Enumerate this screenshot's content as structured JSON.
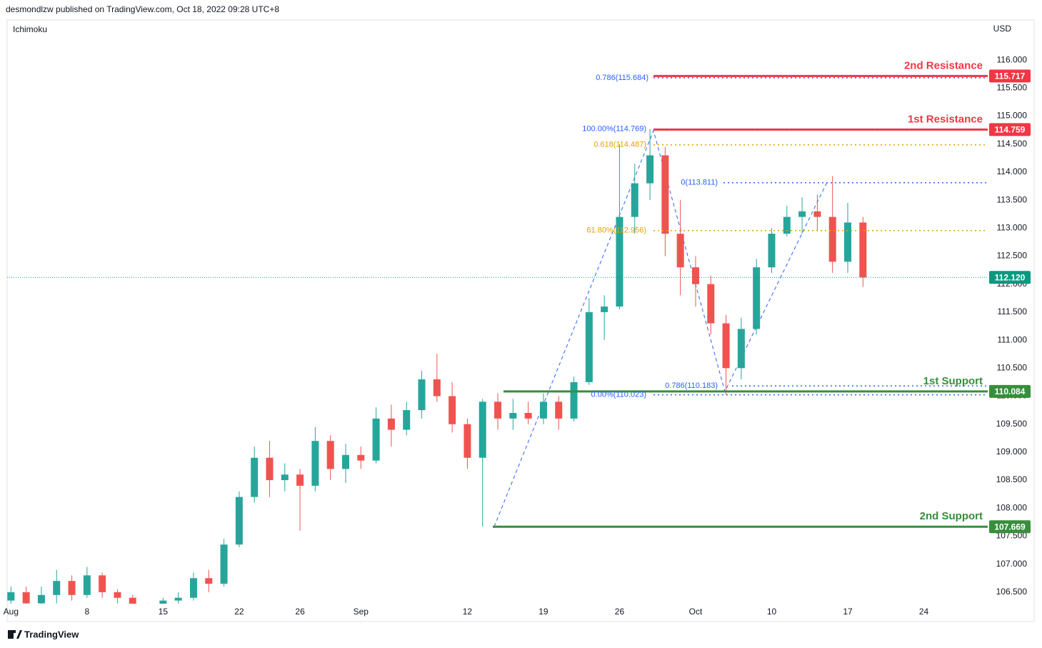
{
  "header": {
    "publisher": "desmondlzw published on TradingView.com, Oct 18, 2022 09:28 UTC+8",
    "indicator": "Ichimoku",
    "currency": "USD",
    "brand": "TradingView"
  },
  "chart_data": {
    "type": "candlestick",
    "xlim": [
      -0.25,
      64.2
    ],
    "ylim": [
      106.294,
      116.716
    ],
    "xticks": [
      {
        "value": 0,
        "label": "Aug"
      },
      {
        "value": 5,
        "label": "8"
      },
      {
        "value": 10,
        "label": "15"
      },
      {
        "value": 15,
        "label": "22"
      },
      {
        "value": 19,
        "label": "26"
      },
      {
        "value": 23,
        "label": "Sep"
      },
      {
        "value": 30,
        "label": "12"
      },
      {
        "value": 35,
        "label": "19"
      },
      {
        "value": 40,
        "label": "26"
      },
      {
        "value": 45,
        "label": "Oct"
      },
      {
        "value": 50,
        "label": "10"
      },
      {
        "value": 55,
        "label": "17"
      },
      {
        "value": 60,
        "label": "24"
      }
    ],
    "yticks": [
      {
        "value": 106.5,
        "label": "106.500"
      },
      {
        "value": 107,
        "label": "107.000"
      },
      {
        "value": 107.5,
        "label": "107.500"
      },
      {
        "value": 108,
        "label": "108.000"
      },
      {
        "value": 108.5,
        "label": "108.500"
      },
      {
        "value": 109,
        "label": "109.000"
      },
      {
        "value": 109.5,
        "label": "109.500"
      },
      {
        "value": 110,
        "label": "110.000"
      },
      {
        "value": 110.5,
        "label": "110.500"
      },
      {
        "value": 111,
        "label": "111.000"
      },
      {
        "value": 111.5,
        "label": "111.500"
      },
      {
        "value": 112,
        "label": "112.000"
      },
      {
        "value": 112.5,
        "label": "112.500"
      },
      {
        "value": 113,
        "label": "113.000"
      },
      {
        "value": 113.5,
        "label": "113.500"
      },
      {
        "value": 114,
        "label": "114.000"
      },
      {
        "value": 114.5,
        "label": "114.500"
      },
      {
        "value": 115,
        "label": "115.000"
      },
      {
        "value": 115.5,
        "label": "115.500"
      },
      {
        "value": 116,
        "label": "116.000"
      }
    ],
    "x": [
      0,
      1,
      2,
      3,
      4,
      5,
      6,
      7,
      8,
      9,
      10,
      11,
      12,
      13,
      14,
      15,
      16,
      17,
      18,
      19,
      20,
      21,
      22,
      23,
      24,
      25,
      26,
      27,
      28,
      29,
      30,
      31,
      32,
      33,
      34,
      35,
      36,
      37,
      38,
      39,
      40,
      41,
      42,
      43,
      44,
      45,
      46,
      47,
      48,
      49,
      50,
      51,
      52,
      53,
      54,
      55,
      56
    ],
    "open": [
      106.35,
      106.5,
      106.3,
      106.45,
      106.7,
      106.45,
      106.8,
      106.5,
      106.4,
      106.2,
      106.1,
      106.35,
      106.4,
      106.75,
      106.65,
      107.35,
      108.2,
      108.9,
      108.5,
      108.6,
      108.4,
      109.2,
      108.7,
      108.95,
      108.85,
      109.6,
      109.4,
      109.75,
      110.3,
      110.0,
      109.5,
      108.9,
      109.9,
      109.6,
      109.7,
      109.6,
      109.9,
      109.6,
      110.25,
      111.5,
      111.6,
      113.2,
      113.8,
      114.3,
      112.9,
      112.3,
      112.0,
      111.3,
      110.5,
      111.2,
      112.3,
      112.9,
      113.2,
      113.3,
      113.2,
      112.4,
      113.1
    ],
    "high": [
      106.6,
      106.6,
      106.6,
      106.9,
      106.8,
      106.95,
      106.85,
      106.55,
      106.45,
      106.3,
      106.4,
      106.5,
      106.85,
      106.9,
      107.45,
      108.3,
      109.1,
      109.2,
      108.8,
      108.7,
      109.45,
      109.3,
      109.15,
      109.1,
      109.8,
      109.85,
      109.9,
      110.45,
      110.76,
      110.25,
      109.6,
      109.95,
      110.05,
      109.95,
      109.9,
      110.05,
      110.0,
      110.35,
      111.75,
      111.8,
      114.5,
      114.15,
      114.769,
      114.45,
      113.5,
      112.5,
      112.15,
      111.45,
      111.4,
      112.45,
      113.0,
      113.4,
      113.55,
      113.6,
      113.93,
      113.45,
      113.2
    ],
    "low": [
      106.2,
      106.2,
      106.25,
      106.3,
      106.35,
      106.4,
      106.4,
      106.3,
      106.1,
      106.0,
      106.0,
      106.25,
      106.35,
      106.5,
      106.6,
      107.3,
      108.1,
      108.2,
      108.3,
      107.6,
      108.3,
      108.5,
      108.45,
      108.7,
      108.8,
      109.1,
      109.3,
      109.6,
      109.9,
      109.35,
      108.7,
      107.669,
      109.4,
      109.4,
      109.5,
      109.5,
      109.4,
      109.55,
      110.2,
      111.0,
      111.55,
      112.9,
      113.5,
      112.5,
      111.8,
      111.6,
      111.1,
      110.023,
      110.3,
      111.1,
      112.2,
      112.85,
      112.9,
      112.95,
      112.2,
      112.2,
      111.95
    ],
    "close": [
      106.5,
      106.3,
      106.45,
      106.7,
      106.45,
      106.8,
      106.5,
      106.4,
      106.2,
      106.1,
      106.35,
      106.4,
      106.75,
      106.65,
      107.35,
      108.2,
      108.9,
      108.5,
      108.6,
      108.4,
      109.2,
      108.7,
      108.95,
      108.85,
      109.6,
      109.4,
      109.75,
      110.3,
      110.0,
      109.5,
      108.9,
      109.9,
      109.6,
      109.7,
      109.6,
      109.9,
      109.6,
      110.25,
      111.5,
      111.6,
      113.2,
      113.8,
      114.3,
      112.9,
      112.3,
      112.0,
      111.3,
      110.5,
      111.2,
      112.3,
      112.9,
      113.2,
      113.3,
      113.2,
      112.4,
      113.1,
      112.12
    ],
    "up_color": "#26a69a",
    "down_color": "#ef5350",
    "levels": [
      {
        "name": "2nd Resistance",
        "value": 115.717,
        "label": "115.717",
        "color": "#f23645"
      },
      {
        "name": "1st Resistance",
        "value": 114.759,
        "label": "114.759",
        "color": "#f23645"
      },
      {
        "name": "1st Support",
        "value": 110.084,
        "label": "110.084",
        "color": "#388e3c"
      },
      {
        "name": "2nd Support",
        "value": 107.669,
        "label": "107.669",
        "color": "#388e3c"
      }
    ],
    "fibs": [
      {
        "label": "0.786(115.684)",
        "value": 115.684,
        "color": "#2962ff"
      },
      {
        "label": "100.00%(114.769)",
        "value": 114.769,
        "color": "#2962ff"
      },
      {
        "label": "0.618(114.487)",
        "value": 114.487,
        "color": "#e5a100"
      },
      {
        "label": "0(113.811)",
        "value": 113.811,
        "color": "#2962ff"
      },
      {
        "label": "61.80%(112.956)",
        "value": 112.956,
        "color": "#e5a100"
      },
      {
        "label": "0.786(110.183)",
        "value": 110.183,
        "color": "#2962ff"
      },
      {
        "label": "0.00%(110.023)",
        "value": 110.023,
        "color": "#2962ff"
      }
    ],
    "last": {
      "value": 112.12,
      "label": "112.120",
      "color": "#089981"
    }
  }
}
